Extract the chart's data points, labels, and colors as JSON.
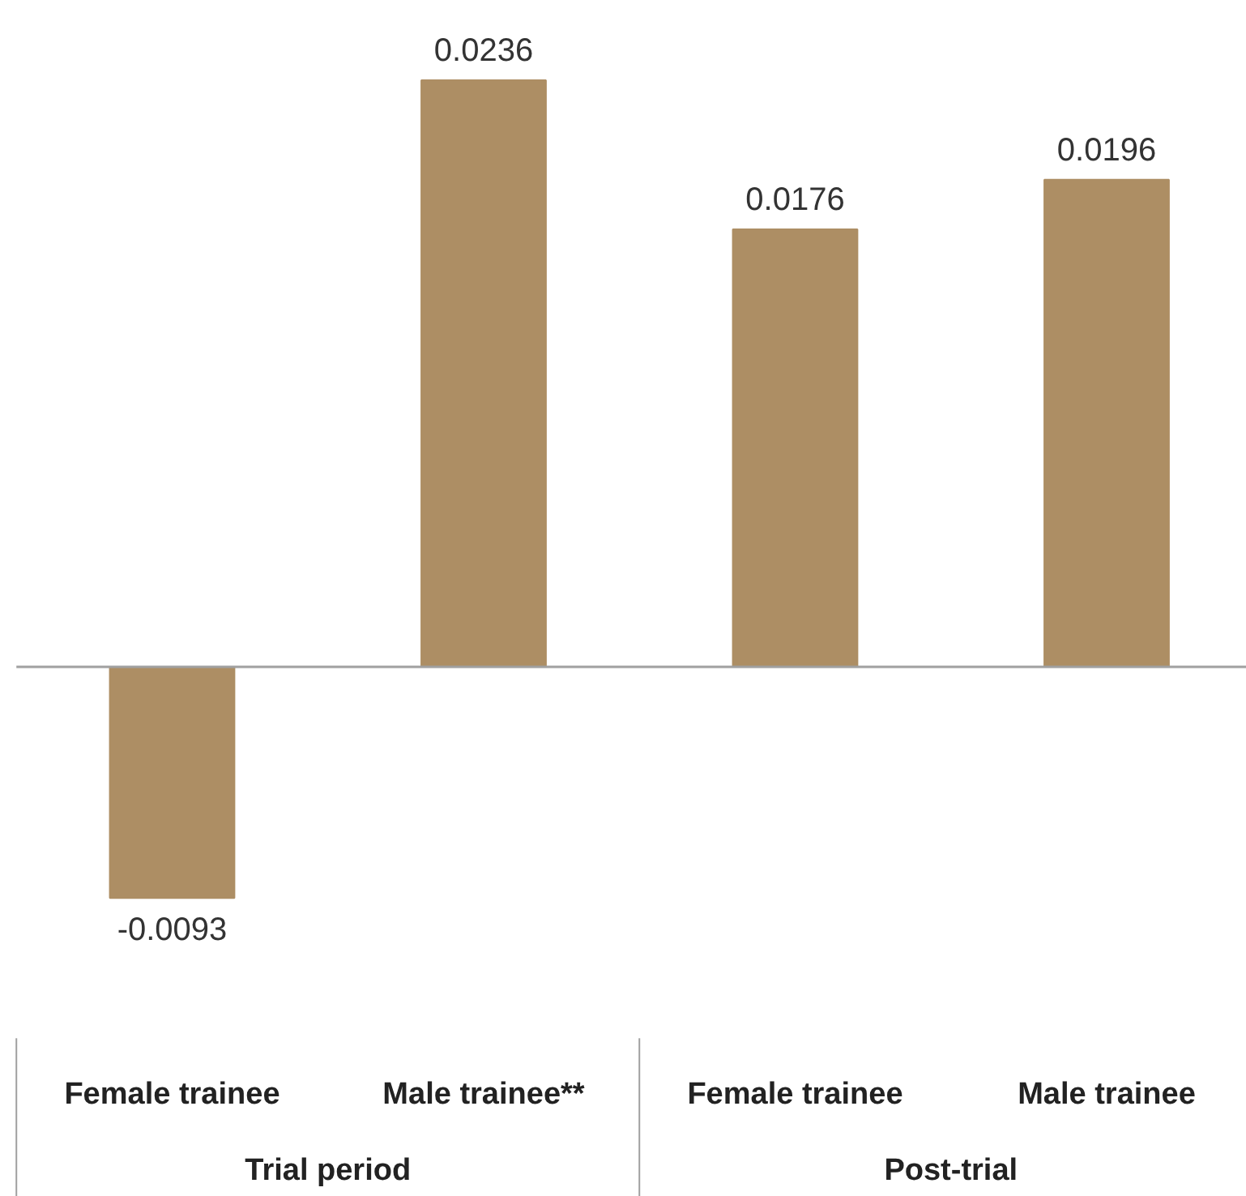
{
  "chart_data": {
    "type": "bar",
    "categories": [
      "Female trainee",
      "Male trainee**",
      "Female trainee",
      "Male trainee"
    ],
    "values": [
      -0.0093,
      0.0236,
      0.0176,
      0.0196
    ],
    "color": "#ad8e64",
    "data_labels": true,
    "annotations": [
      "Trial period",
      "Post-trial"
    ]
  }
}
